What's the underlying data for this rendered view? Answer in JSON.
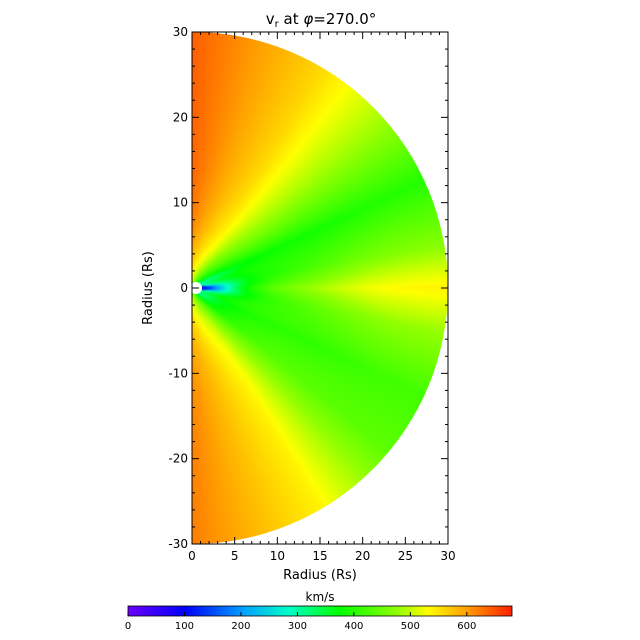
{
  "chart_data": [
    {
      "type": "heatmap",
      "title": "v",
      "title_subscript": "r",
      "title_suffix": " at ",
      "title_symbol": "φ",
      "title_value": "=270.0°",
      "xlabel": "Radius (Rs)",
      "ylabel": "Radius (Rs)",
      "xlim": [
        0,
        30
      ],
      "ylim": [
        -30,
        30
      ],
      "xticks": [
        0,
        5,
        10,
        15,
        20,
        25,
        30
      ],
      "yticks": [
        -30,
        -20,
        -10,
        0,
        10,
        20,
        30
      ],
      "domain_shape": "half-disk",
      "outer_radius": 30,
      "inner_radius": 1,
      "field_description": "radial speed, slow (~0-300 km/s) near equator and inner boundary, fast (~600-650 km/s) at high latitudes",
      "sample_profile_at_r30": {
        "latitude_deg": [
          -90,
          -60,
          -40,
          -25,
          -10,
          0,
          10,
          25,
          40,
          60,
          90
        ],
        "value_kms": [
          620,
          540,
          440,
          420,
          480,
          540,
          470,
          400,
          480,
          560,
          640
        ]
      }
    },
    {
      "type": "colorbar",
      "title": "km/s",
      "range": [
        0,
        680
      ],
      "ticks": [
        0,
        100,
        200,
        300,
        400,
        500,
        600
      ],
      "colormap": "rainbow (purple-blue-cyan-green-yellow-orange-red)"
    }
  ]
}
